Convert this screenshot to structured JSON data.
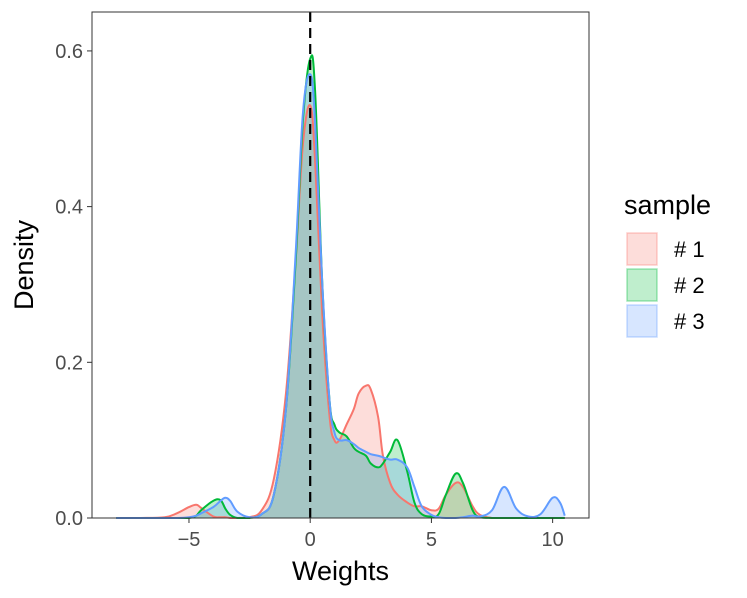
{
  "chart_data": {
    "type": "area",
    "xlabel": "Weights",
    "ylabel": "Density",
    "xlim": [
      -9,
      11.5
    ],
    "ylim": [
      0,
      0.65
    ],
    "x_ticks": [
      -5,
      0,
      5,
      10
    ],
    "x_tick_labels": [
      "−5",
      "0",
      "5",
      "10"
    ],
    "y_ticks": [
      0.0,
      0.2,
      0.4,
      0.6
    ],
    "y_tick_labels": [
      "0.0",
      "0.2",
      "0.4",
      "0.6"
    ],
    "reference_line": {
      "x": 0,
      "style": "dashed",
      "color": "#000000"
    },
    "grid": false,
    "legend": {
      "title": "sample",
      "position": "right"
    },
    "x": [
      -8.0,
      -7.0,
      -6.0,
      -5.5,
      -5.0,
      -4.7,
      -4.5,
      -4.0,
      -3.7,
      -3.5,
      -3.3,
      -3.0,
      -2.5,
      -2.0,
      -1.5,
      -1.0,
      -0.6,
      -0.3,
      0.0,
      0.2,
      0.5,
      0.8,
      1.0,
      1.2,
      1.5,
      1.8,
      2.0,
      2.3,
      2.5,
      2.8,
      3.0,
      3.3,
      3.6,
      4.0,
      4.3,
      4.6,
      5.0,
      5.3,
      5.6,
      6.0,
      6.3,
      6.7,
      7.0,
      7.5,
      8.0,
      8.5,
      9.0,
      9.5,
      10.0,
      10.3,
      10.5
    ],
    "series": [
      {
        "name": "# 1",
        "color": "#F8766D",
        "values": [
          0.0,
          0.0,
          0.001,
          0.006,
          0.014,
          0.017,
          0.013,
          0.002,
          0.001,
          0.001,
          0.0,
          0.0,
          0.001,
          0.01,
          0.05,
          0.16,
          0.33,
          0.48,
          0.53,
          0.46,
          0.26,
          0.13,
          0.1,
          0.1,
          0.12,
          0.14,
          0.16,
          0.17,
          0.165,
          0.13,
          0.08,
          0.045,
          0.03,
          0.02,
          0.015,
          0.015,
          0.01,
          0.012,
          0.03,
          0.045,
          0.04,
          0.015,
          0.004,
          0.0,
          0.0,
          0.0,
          0.0,
          0.0,
          0.0,
          0.0,
          0.0
        ]
      },
      {
        "name": "# 2",
        "color": "#00BA38",
        "values": [
          0.0,
          0.0,
          0.0,
          0.0,
          0.0,
          0.003,
          0.01,
          0.022,
          0.023,
          0.012,
          0.004,
          0.0,
          0.0,
          0.005,
          0.03,
          0.14,
          0.33,
          0.51,
          0.59,
          0.55,
          0.3,
          0.15,
          0.12,
          0.11,
          0.105,
          0.09,
          0.085,
          0.08,
          0.07,
          0.065,
          0.07,
          0.085,
          0.1,
          0.06,
          0.02,
          0.005,
          0.002,
          0.005,
          0.03,
          0.057,
          0.045,
          0.01,
          0.001,
          0.0,
          0.0,
          0.0,
          0.0,
          0.0,
          0.0,
          0.0,
          0.0
        ]
      },
      {
        "name": "# 3",
        "color": "#619CFF",
        "values": [
          0.0,
          0.0,
          0.0,
          0.0,
          0.001,
          0.003,
          0.006,
          0.014,
          0.022,
          0.026,
          0.022,
          0.008,
          0.001,
          0.005,
          0.03,
          0.14,
          0.34,
          0.52,
          0.57,
          0.51,
          0.3,
          0.15,
          0.11,
          0.1,
          0.1,
          0.095,
          0.09,
          0.085,
          0.082,
          0.08,
          0.078,
          0.075,
          0.075,
          0.065,
          0.04,
          0.015,
          0.004,
          0.001,
          0.0,
          0.0,
          0.001,
          0.003,
          0.002,
          0.01,
          0.04,
          0.012,
          0.002,
          0.005,
          0.026,
          0.02,
          0.003
        ]
      }
    ]
  }
}
